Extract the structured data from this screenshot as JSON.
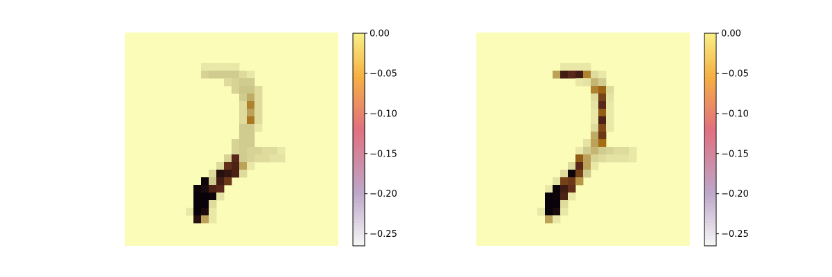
{
  "chart_data": [
    {
      "type": "heatmap",
      "title": "",
      "grid_size": [
        28,
        28
      ],
      "background_value": 0.0,
      "colorbar": {
        "ylim": [
          -0.265,
          0.0
        ],
        "ticks": [
          0.0,
          -0.05,
          -0.1,
          -0.15,
          -0.2,
          -0.25
        ],
        "tick_labels": [
          "0.00",
          "−0.05",
          "−0.10",
          "−0.15",
          "−0.20",
          "−0.25"
        ],
        "colors": [
          "#f7f7f7",
          "#bca7c9",
          "#e1707f",
          "#f6b143",
          "#f7ef86"
        ]
      },
      "cells": [
        [
          4,
          10,
          -0.012
        ],
        [
          4,
          11,
          -0.012
        ],
        [
          4,
          12,
          -0.012
        ],
        [
          4,
          13,
          -0.012
        ],
        [
          4,
          14,
          -0.012
        ],
        [
          5,
          10,
          -0.025
        ],
        [
          5,
          11,
          -0.03
        ],
        [
          5,
          12,
          -0.03
        ],
        [
          5,
          13,
          -0.03
        ],
        [
          5,
          14,
          -0.03
        ],
        [
          5,
          15,
          -0.02
        ],
        [
          5,
          16,
          -0.012
        ],
        [
          6,
          13,
          -0.02
        ],
        [
          6,
          14,
          -0.025
        ],
        [
          6,
          15,
          -0.03
        ],
        [
          6,
          16,
          -0.03
        ],
        [
          7,
          14,
          -0.025
        ],
        [
          7,
          15,
          -0.035
        ],
        [
          7,
          16,
          -0.035
        ],
        [
          7,
          17,
          -0.02
        ],
        [
          8,
          15,
          -0.03
        ],
        [
          8,
          16,
          -0.06
        ],
        [
          8,
          17,
          -0.02
        ],
        [
          9,
          15,
          -0.02
        ],
        [
          9,
          16,
          -0.1
        ],
        [
          9,
          17,
          -0.02
        ],
        [
          10,
          15,
          -0.02
        ],
        [
          10,
          16,
          -0.07
        ],
        [
          10,
          17,
          -0.02
        ],
        [
          11,
          15,
          -0.02
        ],
        [
          11,
          16,
          -0.11
        ],
        [
          11,
          17,
          -0.02
        ],
        [
          12,
          15,
          -0.03
        ],
        [
          12,
          16,
          -0.03
        ],
        [
          12,
          17,
          -0.012
        ],
        [
          13,
          15,
          -0.03
        ],
        [
          13,
          16,
          -0.03
        ],
        [
          14,
          14,
          -0.025
        ],
        [
          14,
          15,
          -0.03
        ],
        [
          14,
          16,
          -0.03
        ],
        [
          15,
          14,
          -0.025
        ],
        [
          15,
          15,
          -0.03
        ],
        [
          15,
          16,
          -0.025
        ],
        [
          15,
          17,
          -0.025
        ],
        [
          15,
          18,
          -0.02
        ],
        [
          15,
          19,
          -0.02
        ],
        [
          15,
          20,
          -0.012
        ],
        [
          16,
          13,
          -0.025
        ],
        [
          16,
          14,
          -0.2
        ],
        [
          16,
          15,
          -0.03
        ],
        [
          16,
          16,
          -0.025
        ],
        [
          16,
          17,
          -0.02
        ],
        [
          16,
          18,
          -0.02
        ],
        [
          16,
          19,
          -0.015
        ],
        [
          16,
          20,
          -0.015
        ],
        [
          17,
          12,
          -0.02
        ],
        [
          17,
          13,
          -0.19
        ],
        [
          17,
          14,
          -0.21
        ],
        [
          17,
          15,
          -0.07
        ],
        [
          17,
          16,
          -0.012
        ],
        [
          18,
          11,
          -0.02
        ],
        [
          18,
          12,
          -0.24
        ],
        [
          18,
          13,
          -0.23
        ],
        [
          18,
          14,
          -0.21
        ],
        [
          18,
          15,
          -0.02
        ],
        [
          19,
          10,
          -0.26
        ],
        [
          19,
          11,
          -0.03
        ],
        [
          19,
          12,
          -0.22
        ],
        [
          19,
          13,
          -0.18
        ],
        [
          20,
          9,
          -0.26
        ],
        [
          20,
          10,
          -0.25
        ],
        [
          20,
          11,
          -0.21
        ],
        [
          20,
          12,
          -0.2
        ],
        [
          21,
          9,
          -0.265
        ],
        [
          21,
          10,
          -0.265
        ],
        [
          21,
          11,
          -0.26
        ],
        [
          21,
          12,
          -0.015
        ],
        [
          22,
          9,
          -0.265
        ],
        [
          22,
          10,
          -0.265
        ],
        [
          22,
          11,
          -0.02
        ],
        [
          23,
          8,
          -0.012
        ],
        [
          23,
          9,
          -0.265
        ],
        [
          23,
          10,
          -0.25
        ],
        [
          23,
          11,
          -0.012
        ],
        [
          24,
          9,
          -0.24
        ],
        [
          24,
          10,
          -0.07
        ],
        [
          24,
          11,
          -0.012
        ]
      ]
    },
    {
      "type": "heatmap",
      "title": "",
      "grid_size": [
        28,
        28
      ],
      "background_value": 0.0,
      "colorbar": {
        "ylim": [
          -0.265,
          0.0
        ],
        "ticks": [
          0.0,
          -0.05,
          -0.1,
          -0.15,
          -0.2,
          -0.25
        ],
        "tick_labels": [
          "0.00",
          "−0.05",
          "−0.10",
          "−0.15",
          "−0.20",
          "−0.25"
        ],
        "colors": [
          "#f7f7f7",
          "#bca7c9",
          "#e1707f",
          "#f6b143",
          "#f7ef86"
        ]
      },
      "cells": [
        [
          4,
          11,
          -0.012
        ],
        [
          4,
          12,
          -0.012
        ],
        [
          4,
          13,
          -0.012
        ],
        [
          4,
          14,
          -0.012
        ],
        [
          5,
          10,
          -0.07
        ],
        [
          5,
          11,
          -0.22
        ],
        [
          5,
          12,
          -0.2
        ],
        [
          5,
          13,
          -0.22
        ],
        [
          5,
          14,
          -0.1
        ],
        [
          5,
          15,
          -0.02
        ],
        [
          5,
          16,
          -0.012
        ],
        [
          6,
          13,
          -0.012
        ],
        [
          6,
          14,
          -0.015
        ],
        [
          6,
          15,
          -0.05
        ],
        [
          6,
          16,
          -0.03
        ],
        [
          7,
          15,
          -0.1
        ],
        [
          7,
          16,
          -0.13
        ],
        [
          7,
          17,
          -0.02
        ],
        [
          8,
          15,
          -0.02
        ],
        [
          8,
          16,
          -0.17
        ],
        [
          8,
          17,
          -0.015
        ],
        [
          9,
          15,
          -0.015
        ],
        [
          9,
          16,
          -0.2
        ],
        [
          9,
          17,
          -0.012
        ],
        [
          10,
          15,
          -0.012
        ],
        [
          10,
          16,
          -0.14
        ],
        [
          10,
          17,
          -0.012
        ],
        [
          11,
          15,
          -0.012
        ],
        [
          11,
          16,
          -0.21
        ],
        [
          11,
          17,
          -0.012
        ],
        [
          12,
          15,
          -0.02
        ],
        [
          12,
          16,
          -0.16
        ],
        [
          12,
          17,
          -0.012
        ],
        [
          13,
          15,
          -0.06
        ],
        [
          13,
          16,
          -0.18
        ],
        [
          14,
          14,
          -0.015
        ],
        [
          14,
          15,
          -0.07
        ],
        [
          14,
          16,
          -0.12
        ],
        [
          15,
          13,
          -0.012
        ],
        [
          15,
          14,
          -0.03
        ],
        [
          15,
          15,
          -0.05
        ],
        [
          15,
          16,
          -0.03
        ],
        [
          15,
          17,
          -0.025
        ],
        [
          15,
          18,
          -0.02
        ],
        [
          15,
          19,
          -0.02
        ],
        [
          15,
          20,
          -0.012
        ],
        [
          16,
          13,
          -0.14
        ],
        [
          16,
          14,
          -0.07
        ],
        [
          16,
          15,
          -0.025
        ],
        [
          16,
          16,
          -0.02
        ],
        [
          16,
          17,
          -0.015
        ],
        [
          16,
          18,
          -0.015
        ],
        [
          16,
          19,
          -0.015
        ],
        [
          16,
          20,
          -0.012
        ],
        [
          17,
          12,
          -0.02
        ],
        [
          17,
          13,
          -0.2
        ],
        [
          17,
          14,
          -0.07
        ],
        [
          17,
          15,
          -0.012
        ],
        [
          18,
          11,
          -0.02
        ],
        [
          18,
          12,
          -0.26
        ],
        [
          18,
          13,
          -0.17
        ],
        [
          18,
          14,
          -0.03
        ],
        [
          19,
          10,
          -0.015
        ],
        [
          19,
          11,
          -0.17
        ],
        [
          19,
          12,
          -0.18
        ],
        [
          19,
          13,
          -0.08
        ],
        [
          20,
          9,
          -0.012
        ],
        [
          20,
          10,
          -0.26
        ],
        [
          20,
          11,
          -0.22
        ],
        [
          20,
          12,
          -0.19
        ],
        [
          21,
          9,
          -0.265
        ],
        [
          21,
          10,
          -0.26
        ],
        [
          21,
          11,
          -0.21
        ],
        [
          21,
          12,
          -0.012
        ],
        [
          22,
          9,
          -0.265
        ],
        [
          22,
          10,
          -0.265
        ],
        [
          22,
          11,
          -0.02
        ],
        [
          23,
          8,
          -0.012
        ],
        [
          23,
          9,
          -0.265
        ],
        [
          23,
          10,
          -0.25
        ],
        [
          23,
          11,
          -0.012
        ],
        [
          24,
          9,
          -0.07
        ],
        [
          24,
          10,
          -0.012
        ]
      ]
    }
  ]
}
